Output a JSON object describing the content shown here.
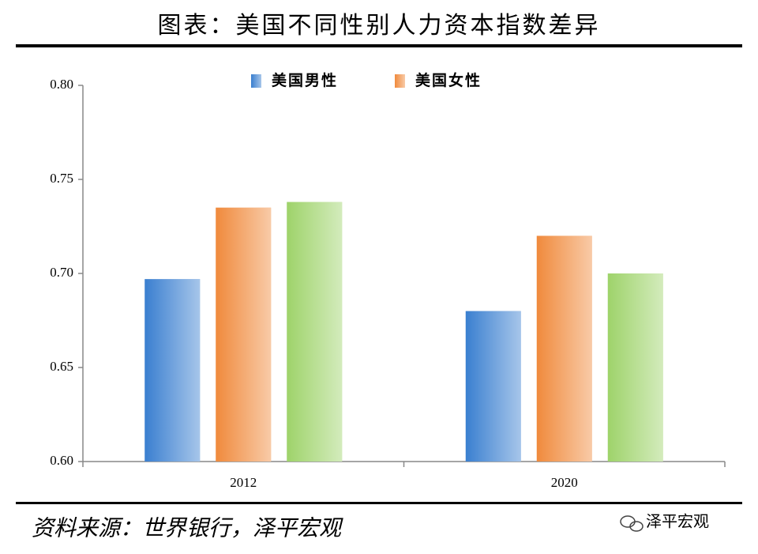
{
  "chart_data": {
    "type": "bar",
    "title": "图表：美国不同性别人力资本指数差异",
    "categories": [
      "2012",
      "2020"
    ],
    "series": [
      {
        "name": "美国男性",
        "color": "#3a7fd0",
        "values": [
          0.697,
          0.68
        ]
      },
      {
        "name": "美国女性",
        "color": "#f08a3c",
        "values": [
          0.735,
          0.72
        ]
      },
      {
        "color": "#9ed36a",
        "values": [
          0.738,
          0.7
        ]
      }
    ],
    "ylim": [
      0.6,
      0.8
    ],
    "yticks": [
      {
        "value": 0.6,
        "label": "0.60"
      },
      {
        "value": 0.65,
        "label": "0.65"
      },
      {
        "value": 0.7,
        "label": "0.70"
      },
      {
        "value": 0.75,
        "label": "0.75"
      },
      {
        "value": 0.8,
        "label": "0.80"
      }
    ],
    "source": "资料来源：世界银行，泽平宏观",
    "watermark": "泽平宏观"
  }
}
